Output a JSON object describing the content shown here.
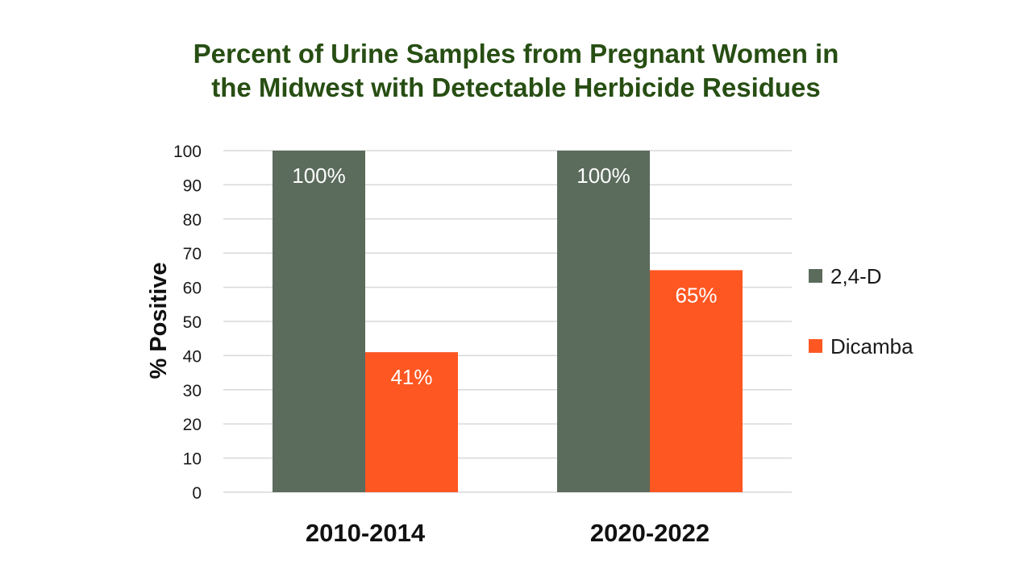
{
  "chart_data": {
    "type": "bar",
    "title": [
      "Percent of Urine Samples from Pregnant Women in",
      "the Midwest with Detectable Herbicide Residues"
    ],
    "xlabel": "",
    "ylabel": "% Positive",
    "categories": [
      "2010-2014",
      "2020-2022"
    ],
    "series": [
      {
        "name": "2,4-D",
        "values": [
          100,
          100
        ],
        "labels": [
          "100%",
          "100%"
        ],
        "color": "#5b6b5c"
      },
      {
        "name": "Dicamba",
        "values": [
          41,
          65
        ],
        "labels": [
          "41%",
          "65%"
        ],
        "color": "#ff5722"
      }
    ],
    "ylim": [
      0,
      100
    ],
    "yticks": [
      0,
      10,
      20,
      30,
      40,
      50,
      60,
      70,
      80,
      90,
      100
    ],
    "grid": true,
    "legend_position": "right"
  },
  "colors": {
    "title": "#274e13",
    "grid": "#d9d9d9"
  }
}
